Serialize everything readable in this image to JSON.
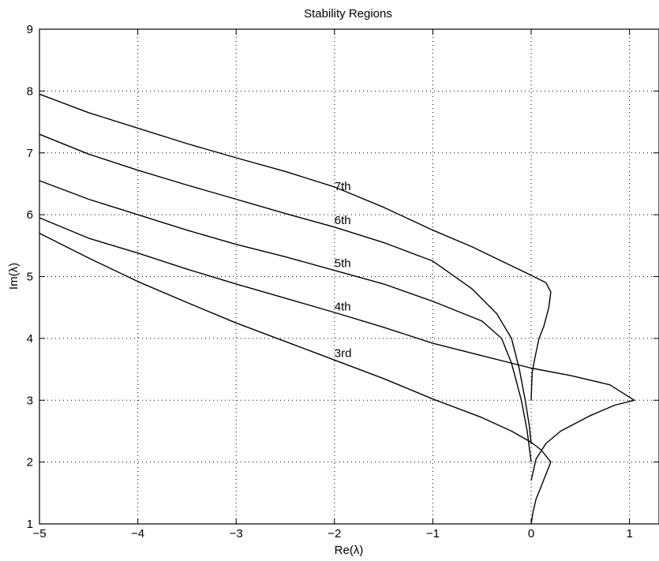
{
  "chart_data": {
    "type": "line",
    "title": "Stability Regions",
    "xlabel": "Re(λ)",
    "ylabel": "Im(λ)",
    "xlim": [
      -5,
      1.3
    ],
    "ylim": [
      1,
      9
    ],
    "xticks": [
      -5,
      -4,
      -3,
      -2,
      -1,
      0,
      1
    ],
    "xtick_labels": [
      "−5",
      "−4",
      "−3",
      "−2",
      "−1",
      "0",
      "1"
    ],
    "yticks": [
      1,
      2,
      3,
      4,
      5,
      6,
      7,
      8,
      9
    ],
    "ytick_labels": [
      "1",
      "2",
      "3",
      "4",
      "5",
      "6",
      "7",
      "8",
      "9"
    ],
    "grid": true,
    "legend": "none",
    "series": [
      {
        "name": "3rd",
        "label_at": [
          -2.0,
          3.7
        ],
        "points": [
          [
            -5.0,
            5.7
          ],
          [
            -4.5,
            5.3
          ],
          [
            -4.0,
            4.92
          ],
          [
            -3.5,
            4.58
          ],
          [
            -3.0,
            4.25
          ],
          [
            -2.5,
            3.95
          ],
          [
            -2.0,
            3.65
          ],
          [
            -1.5,
            3.35
          ],
          [
            -1.0,
            3.02
          ],
          [
            -0.5,
            2.72
          ],
          [
            -0.2,
            2.5
          ],
          [
            0.0,
            2.32
          ],
          [
            0.1,
            2.2
          ],
          [
            0.2,
            2.0
          ],
          [
            0.15,
            1.8
          ],
          [
            0.1,
            1.6
          ],
          [
            0.05,
            1.4
          ],
          [
            0.02,
            1.2
          ],
          [
            0.0,
            1.0
          ]
        ]
      },
      {
        "name": "4th",
        "label_at": [
          -2.0,
          4.45
        ],
        "points": [
          [
            -5.0,
            5.95
          ],
          [
            -4.5,
            5.62
          ],
          [
            -4.0,
            5.38
          ],
          [
            -3.5,
            5.12
          ],
          [
            -3.0,
            4.88
          ],
          [
            -2.5,
            4.65
          ],
          [
            -2.0,
            4.42
          ],
          [
            -1.5,
            4.18
          ],
          [
            -1.0,
            3.92
          ],
          [
            -0.5,
            3.72
          ],
          [
            0.0,
            3.52
          ],
          [
            0.4,
            3.4
          ],
          [
            0.8,
            3.25
          ],
          [
            1.05,
            3.0
          ],
          [
            0.85,
            2.92
          ],
          [
            0.6,
            2.75
          ],
          [
            0.3,
            2.5
          ],
          [
            0.15,
            2.3
          ],
          [
            0.05,
            2.05
          ],
          [
            0.0,
            1.7
          ]
        ]
      },
      {
        "name": "5th",
        "label_at": [
          -2.0,
          5.15
        ],
        "points": [
          [
            -5.0,
            6.55
          ],
          [
            -4.5,
            6.25
          ],
          [
            -4.0,
            6.0
          ],
          [
            -3.5,
            5.75
          ],
          [
            -3.0,
            5.52
          ],
          [
            -2.5,
            5.32
          ],
          [
            -2.0,
            5.1
          ],
          [
            -1.5,
            4.88
          ],
          [
            -1.0,
            4.6
          ],
          [
            -0.5,
            4.28
          ],
          [
            -0.3,
            4.0
          ],
          [
            -0.2,
            3.6
          ],
          [
            -0.1,
            3.0
          ],
          [
            -0.04,
            2.5
          ],
          [
            0.0,
            2.0
          ]
        ]
      },
      {
        "name": "6th",
        "label_at": [
          -2.0,
          5.85
        ],
        "points": [
          [
            -5.0,
            7.3
          ],
          [
            -4.5,
            6.98
          ],
          [
            -4.0,
            6.72
          ],
          [
            -3.5,
            6.48
          ],
          [
            -3.0,
            6.25
          ],
          [
            -2.5,
            6.02
          ],
          [
            -2.0,
            5.8
          ],
          [
            -1.5,
            5.55
          ],
          [
            -1.0,
            5.25
          ],
          [
            -0.6,
            4.8
          ],
          [
            -0.35,
            4.4
          ],
          [
            -0.2,
            4.0
          ],
          [
            -0.12,
            3.5
          ],
          [
            -0.06,
            3.0
          ],
          [
            -0.02,
            2.6
          ],
          [
            0.0,
            2.3
          ]
        ]
      },
      {
        "name": "7th",
        "label_at": [
          -2.0,
          6.4
        ],
        "points": [
          [
            -5.0,
            7.95
          ],
          [
            -4.5,
            7.65
          ],
          [
            -4.0,
            7.4
          ],
          [
            -3.5,
            7.15
          ],
          [
            -3.0,
            6.92
          ],
          [
            -2.5,
            6.7
          ],
          [
            -2.0,
            6.45
          ],
          [
            -1.5,
            6.12
          ],
          [
            -1.0,
            5.75
          ],
          [
            -0.6,
            5.48
          ],
          [
            -0.3,
            5.25
          ],
          [
            0.0,
            5.02
          ],
          [
            0.15,
            4.9
          ],
          [
            0.2,
            4.75
          ],
          [
            0.18,
            4.5
          ],
          [
            0.13,
            4.2
          ],
          [
            0.08,
            4.0
          ],
          [
            0.04,
            3.7
          ],
          [
            0.01,
            3.45
          ],
          [
            0.0,
            3.0
          ]
        ]
      }
    ]
  }
}
